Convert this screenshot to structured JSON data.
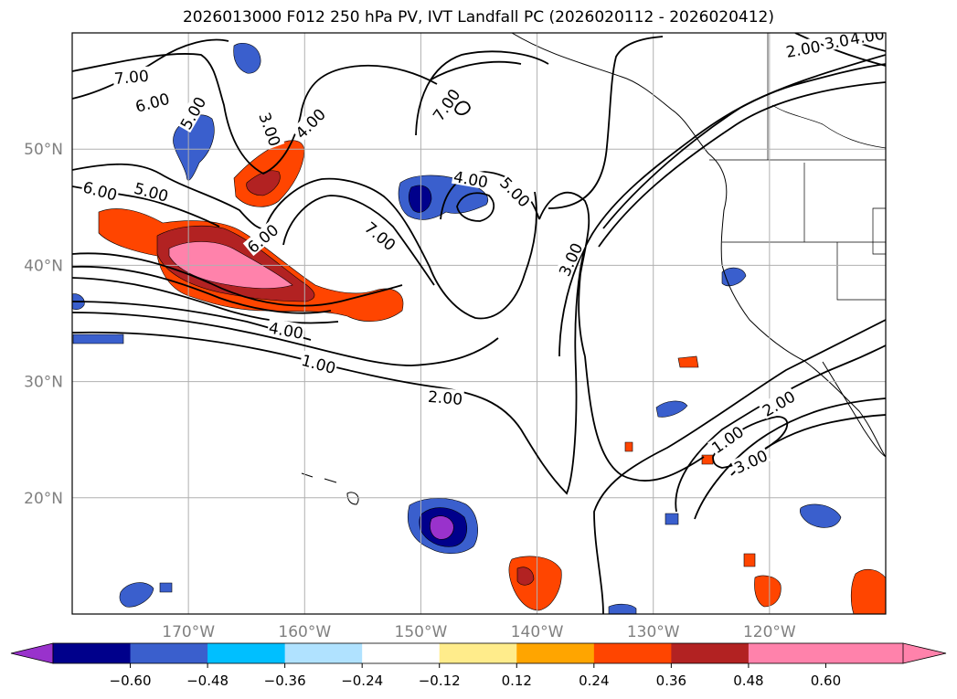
{
  "title": "2026013000 F012 250 hPa PV, IVT Landfall PC (2026020112 - 2026020412)",
  "map": {
    "lat_range": [
      10,
      60
    ],
    "lon_range": [
      -180,
      -110
    ],
    "lat_ticks": [
      {
        "value": 50,
        "label": "50°N"
      },
      {
        "value": 40,
        "label": "40°N"
      },
      {
        "value": 30,
        "label": "30°N"
      },
      {
        "value": 20,
        "label": "20°N"
      }
    ],
    "lon_ticks": [
      {
        "value": -170,
        "label": "170°W"
      },
      {
        "value": -160,
        "label": "160°W"
      },
      {
        "value": -150,
        "label": "150°W"
      },
      {
        "value": -140,
        "label": "140°W"
      },
      {
        "value": -130,
        "label": "130°W"
      },
      {
        "value": -120,
        "label": "120°W"
      }
    ],
    "grid": true,
    "tick_label_color": "#808080"
  },
  "contour_labels": [
    {
      "text": "7.00",
      "lon": -174.9,
      "lat": 56.2,
      "angle": -5
    },
    {
      "text": "6.00",
      "lon": -173.1,
      "lat": 54.0,
      "angle": -15
    },
    {
      "text": "5.00",
      "lon": -169.6,
      "lat": 53.1,
      "angle": -60
    },
    {
      "text": "3.00",
      "lon": -163.0,
      "lat": 51.7,
      "angle": 70
    },
    {
      "text": "4.00",
      "lon": -159.5,
      "lat": 52.2,
      "angle": -45
    },
    {
      "text": "7.00",
      "lon": -147.8,
      "lat": 53.8,
      "angle": -55
    },
    {
      "text": "6.00",
      "lon": -177.6,
      "lat": 46.4,
      "angle": 15
    },
    {
      "text": "5.00",
      "lon": -173.2,
      "lat": 46.3,
      "angle": 15
    },
    {
      "text": "6.00",
      "lon": -163.6,
      "lat": 42.3,
      "angle": -40
    },
    {
      "text": "7.00",
      "lon": -153.5,
      "lat": 42.5,
      "angle": 40
    },
    {
      "text": "4.00",
      "lon": -145.7,
      "lat": 47.4,
      "angle": 10
    },
    {
      "text": "5.00",
      "lon": -141.9,
      "lat": 46.3,
      "angle": 45
    },
    {
      "text": "3.00",
      "lon": -137.1,
      "lat": 40.5,
      "angle": -65
    },
    {
      "text": "4.00",
      "lon": -161.6,
      "lat": 34.4,
      "angle": 10
    },
    {
      "text": "1.00",
      "lon": -158.8,
      "lat": 31.5,
      "angle": 15
    },
    {
      "text": "2.00",
      "lon": -147.9,
      "lat": 28.6,
      "angle": 5
    },
    {
      "text": "1.00",
      "lon": -123.6,
      "lat": 25.0,
      "angle": -35
    },
    {
      "text": "2.00",
      "lon": -119.2,
      "lat": 28.1,
      "angle": -30
    },
    {
      "text": "3.00",
      "lon": -121.6,
      "lat": 23.1,
      "angle": -25
    },
    {
      "text": "2.00",
      "lon": -117.1,
      "lat": 58.6,
      "angle": -10
    },
    {
      "text": "3.00",
      "lon": -113.8,
      "lat": 59.3,
      "angle": -10
    },
    {
      "text": "4.00",
      "lon": -111.6,
      "lat": 59.7,
      "angle": -10
    }
  ],
  "colorbar": {
    "ticks": [
      "−0.60",
      "−0.48",
      "−0.36",
      "−0.24",
      "−0.12",
      "0.12",
      "0.24",
      "0.36",
      "0.48",
      "0.60"
    ],
    "colors": [
      "#9932cc",
      "#00008b",
      "#3a5fcd",
      "#00bfff",
      "#b0e2ff",
      "#ffffff",
      "#ffec8b",
      "#ffa500",
      "#ff4500",
      "#b22222",
      "#ff82ab",
      "#ff82ab"
    ]
  }
}
